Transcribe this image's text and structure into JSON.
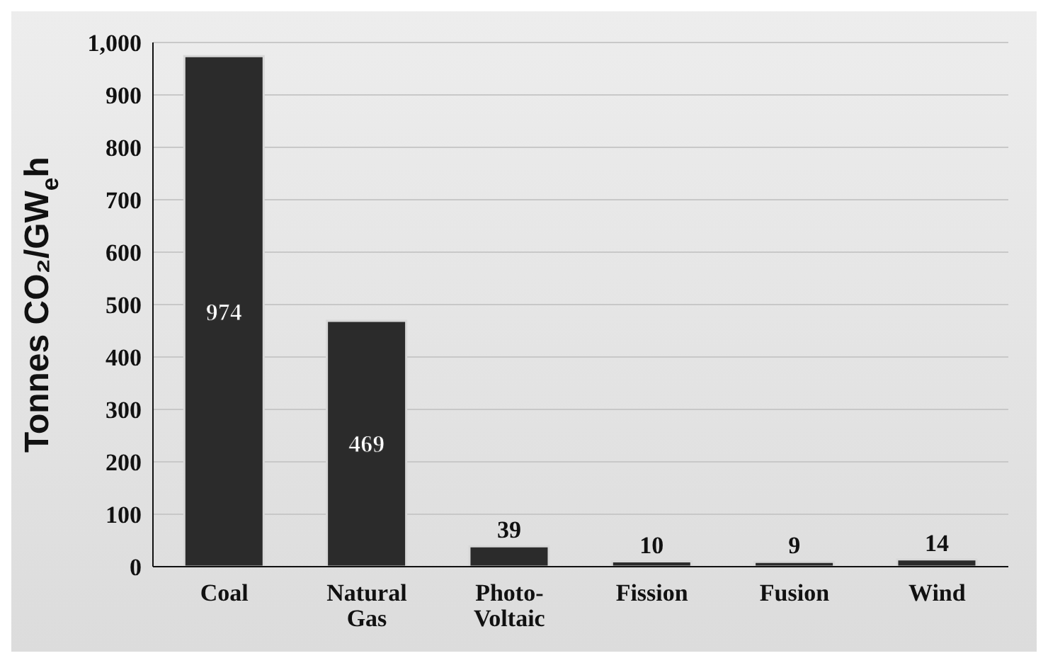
{
  "chart_data": {
    "type": "bar",
    "ylabel": "Tonnes CO₂/GW$_{e}$h",
    "categories": [
      "Coal",
      "Natural Gas",
      "Photo-Voltaic",
      "Fission",
      "Fusion",
      "Wind"
    ],
    "values": [
      974,
      469,
      39,
      10,
      9,
      14
    ],
    "color": "#2b2b2b",
    "ylim": [
      0,
      1000
    ],
    "yticks": [
      0,
      100,
      200,
      300,
      400,
      500,
      600,
      700,
      800,
      900,
      {
        "value": 1000,
        "label": "1,000"
      }
    ],
    "grid": "y",
    "data_labels": true
  }
}
